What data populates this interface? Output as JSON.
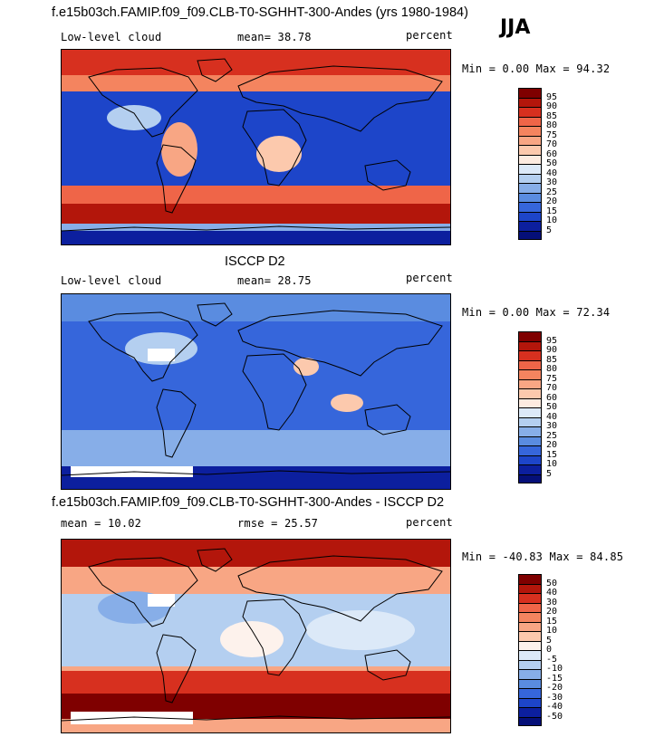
{
  "header": {
    "season": "JJA"
  },
  "panels": [
    {
      "title": "f.e15b03ch.FAMIP.f09_f09.CLB-T0-SGHHT-300-Andes (yrs 1980-1984)",
      "variable": "Low-level cloud",
      "stat1": "mean=  38.78",
      "stat2": "",
      "units": "percent",
      "range_text": "Min =   0.00 Max =  94.32",
      "palette": "seq",
      "min": 0.0,
      "max": 94.32,
      "mean": 38.78
    },
    {
      "title": "ISCCP D2",
      "variable": "Low-level cloud",
      "stat1": "mean=  28.75",
      "stat2": "",
      "units": "percent",
      "range_text": "Min =   0.00 Max =  72.34",
      "palette": "seq",
      "min": 0.0,
      "max": 72.34,
      "mean": 28.75
    },
    {
      "title": "f.e15b03ch.FAMIP.f09_f09.CLB-T0-SGHHT-300-Andes - ISCCP D2",
      "variable": "",
      "stat1": "mean =  10.02",
      "stat2": "rmse =  25.57",
      "units": "percent",
      "range_text": "Min = -40.83 Max =  84.85",
      "palette": "diff",
      "min": -40.83,
      "max": 84.85,
      "mean": 10.02,
      "rmse": 25.57
    }
  ],
  "colorbars": {
    "seq": {
      "labels": [
        "95",
        "90",
        "85",
        "80",
        "75",
        "70",
        "60",
        "50",
        "40",
        "30",
        "25",
        "20",
        "15",
        "10",
        "5"
      ],
      "colors": [
        "#7f0000",
        "#b3160b",
        "#d7301f",
        "#ef6548",
        "#f4845f",
        "#f8a684",
        "#fcc9ad",
        "#fdebe0",
        "#dce9f8",
        "#b4cff0",
        "#87aee8",
        "#5a8ce0",
        "#3666db",
        "#1d45c9",
        "#0c1f9e",
        "#050f78"
      ]
    },
    "diff": {
      "labels": [
        "50",
        "40",
        "30",
        "20",
        "15",
        "10",
        "5",
        "0",
        "-5",
        "-10",
        "-15",
        "-20",
        "-30",
        "-40",
        "-50"
      ],
      "colors": [
        "#7f0000",
        "#b3160b",
        "#d7301f",
        "#ef6548",
        "#f4845f",
        "#f8a684",
        "#fcc9ad",
        "#fdf2ec",
        "#dce9f8",
        "#b4cff0",
        "#87aee8",
        "#5a8ce0",
        "#3666db",
        "#1d45c9",
        "#0c1f9e",
        "#050f78"
      ]
    }
  },
  "chart_data": [
    {
      "type": "heatmap",
      "title": "f.e15b03ch.FAMIP.f09_f09.CLB-T0-SGHHT-300-Andes (yrs 1980-1984)",
      "variable": "Low-level cloud",
      "units": "percent",
      "mean": 38.78,
      "min": 0.0,
      "max": 94.32,
      "colorbar_levels": [
        5,
        10,
        15,
        20,
        25,
        30,
        40,
        50,
        60,
        70,
        75,
        80,
        85,
        90,
        95
      ]
    },
    {
      "type": "heatmap",
      "title": "ISCCP D2",
      "variable": "Low-level cloud",
      "units": "percent",
      "mean": 28.75,
      "min": 0.0,
      "max": 72.34,
      "colorbar_levels": [
        5,
        10,
        15,
        20,
        25,
        30,
        40,
        50,
        60,
        70,
        75,
        80,
        85,
        90,
        95
      ]
    },
    {
      "type": "heatmap",
      "title": "f.e15b03ch.FAMIP.f09_f09.CLB-T0-SGHHT-300-Andes - ISCCP D2",
      "units": "percent",
      "mean": 10.02,
      "rmse": 25.57,
      "min": -40.83,
      "max": 84.85,
      "colorbar_levels": [
        -50,
        -40,
        -30,
        -20,
        -15,
        -10,
        -5,
        0,
        5,
        10,
        15,
        20,
        30,
        40,
        50
      ]
    }
  ]
}
